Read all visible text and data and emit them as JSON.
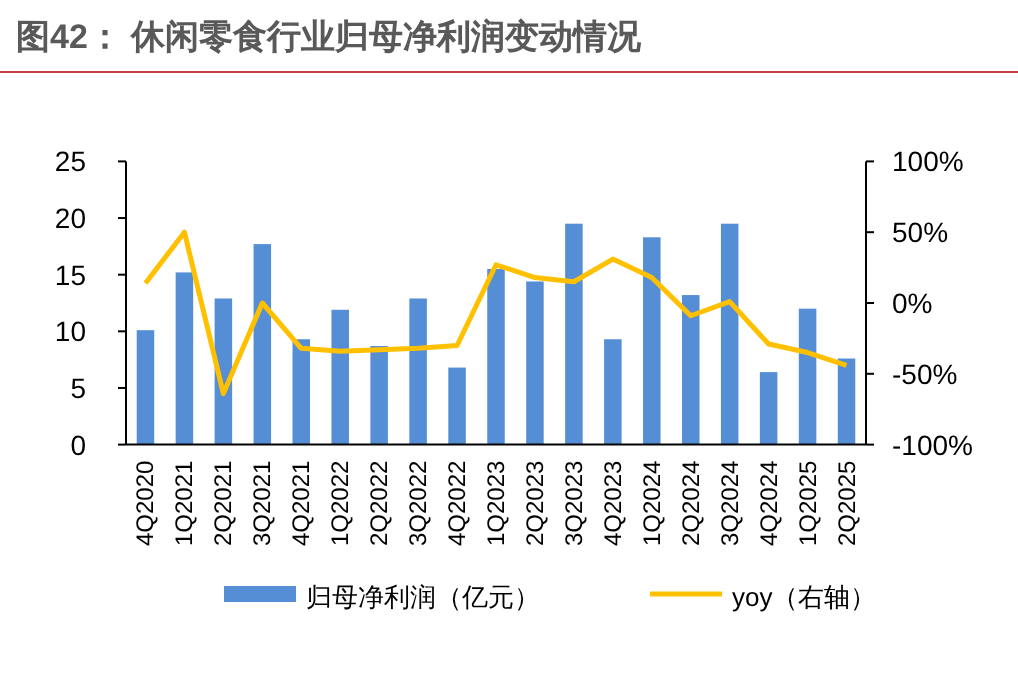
{
  "chart_data": {
    "type": "bar",
    "title": "图42： 休闲零食行业归母净利润变动情况",
    "categories": [
      "4Q2020",
      "1Q2021",
      "2Q2021",
      "3Q2021",
      "4Q2021",
      "1Q2022",
      "2Q2022",
      "3Q2022",
      "4Q2022",
      "1Q2023",
      "2Q2023",
      "3Q2023",
      "4Q2023",
      "1Q2024",
      "2Q2024",
      "3Q2024",
      "4Q2024",
      "1Q2025",
      "2Q2025"
    ],
    "series": [
      {
        "name": "归母净利润（亿元）",
        "color": "#558ed5",
        "values": [
          10.1,
          15.2,
          12.9,
          17.7,
          9.3,
          11.9,
          8.7,
          12.9,
          6.8,
          15.5,
          14.4,
          19.5,
          9.3,
          18.3,
          13.2,
          19.5,
          6.4,
          12.0,
          7.6
        ]
      },
      {
        "name": "yoy（右轴）",
        "type": "line",
        "axis": "y2",
        "color": "#ffc000",
        "values": [
          14,
          50,
          -64,
          0,
          -32,
          -34,
          -33,
          -32,
          -30,
          27,
          18,
          15,
          31,
          18,
          -9,
          1,
          -29,
          -35,
          -44
        ]
      }
    ],
    "ylim": [
      0,
      25
    ],
    "yticks": [
      0,
      5,
      10,
      15,
      20,
      25
    ],
    "y2lim": [
      -100,
      100
    ],
    "y2ticks": [
      {
        "value": -100,
        "label": "-100%"
      },
      {
        "value": -50,
        "label": "-50%"
      },
      {
        "value": 0,
        "label": "0%"
      },
      {
        "value": 50,
        "label": "50%"
      },
      {
        "value": 100,
        "label": "100%"
      }
    ],
    "legend": "bottom",
    "grid": false
  }
}
